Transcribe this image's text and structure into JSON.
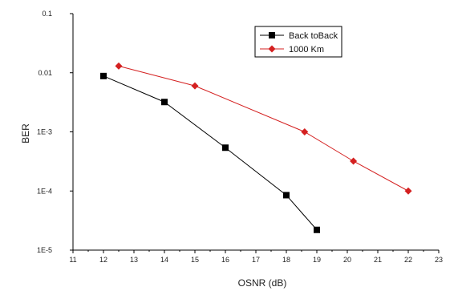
{
  "chart_data": {
    "type": "line",
    "xlabel": "OSNR (dB)",
    "ylabel": "BER",
    "xlim": [
      11,
      23
    ],
    "ylim": [
      1e-05,
      0.1
    ],
    "y_scale": "log",
    "grid": false,
    "legend_position": "top-right",
    "x_ticks": [
      11,
      12,
      13,
      14,
      15,
      16,
      17,
      18,
      19,
      20,
      21,
      22,
      23
    ],
    "x_tick_labels": [
      "11",
      "12",
      "13",
      "14",
      "15",
      "16",
      "17",
      "18",
      "19",
      "20",
      "21",
      "22",
      "23"
    ],
    "y_ticks": [
      1e-05,
      0.0001,
      0.001,
      0.01,
      0.1
    ],
    "y_tick_labels": [
      "1E-5",
      "1E-4",
      "1E-3",
      "0.01",
      "0.1"
    ],
    "series": [
      {
        "name": "Back toBack",
        "color": "#000000",
        "marker": "square",
        "x": [
          12,
          14,
          16,
          18,
          19
        ],
        "y": [
          0.0088,
          0.0032,
          0.00054,
          8.5e-05,
          2.2e-05
        ]
      },
      {
        "name": "1000 Km",
        "color": "#d42020",
        "marker": "diamond",
        "x": [
          12.5,
          15,
          18.6,
          20.2,
          22
        ],
        "y": [
          0.013,
          0.006,
          0.001,
          0.00032,
          0.0001
        ]
      }
    ]
  }
}
